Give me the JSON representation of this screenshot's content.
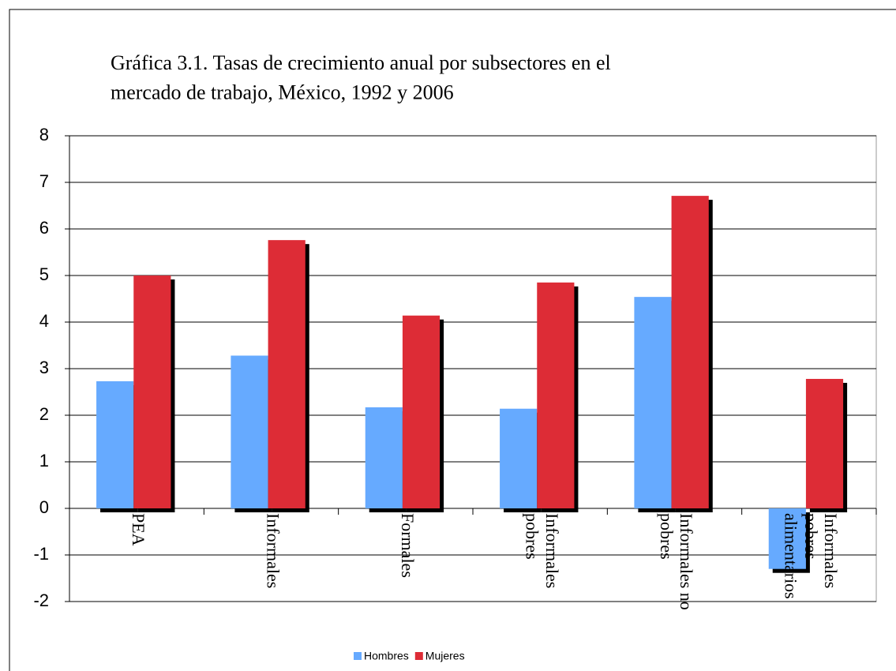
{
  "chart_data": {
    "type": "bar",
    "title": "Gráfica 3.1. Tasas de crecimiento anual por subsectores en el mercado de trabajo, México, 1992 y 2006",
    "categories": [
      "PEA",
      "Informales",
      "Formales",
      "Informales pobres",
      "Informales no pobres",
      "Informales pobres alimentarios"
    ],
    "series": [
      {
        "name": "Hombres",
        "color": "#66aaff",
        "values": [
          2.73,
          3.28,
          2.17,
          2.14,
          4.54,
          -1.3
        ]
      },
      {
        "name": "Mujeres",
        "color": "#dd2c36",
        "values": [
          5.0,
          5.76,
          4.14,
          4.85,
          6.71,
          2.78
        ]
      }
    ],
    "ylim": [
      -2,
      8
    ],
    "yticks": [
      -2,
      -1,
      0,
      1,
      2,
      3,
      4,
      5,
      6,
      7,
      8
    ],
    "grid": true,
    "legend": "bottom"
  }
}
